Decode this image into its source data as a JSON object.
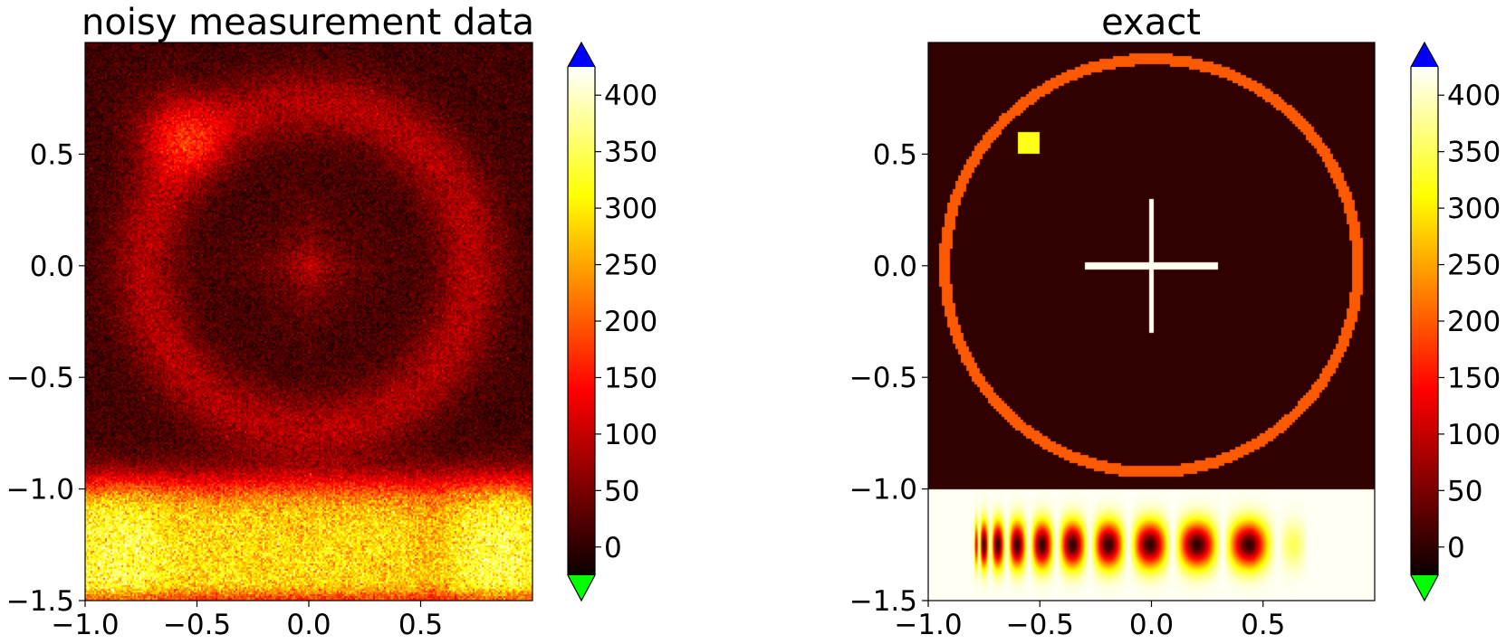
{
  "chart_data": [
    {
      "type": "heatmap",
      "title": "noisy measurement data",
      "xlabel": "",
      "ylabel": "",
      "xlim": [
        -1.0,
        1.0
      ],
      "ylim": [
        -1.5,
        1.0
      ],
      "xticks": [
        -1.0,
        -0.5,
        0.0,
        0.5
      ],
      "xtick_labels": [
        "−1.0",
        "−0.5",
        "0.0",
        "0.5"
      ],
      "yticks": [
        -1.5,
        -1.0,
        -0.5,
        0.0,
        0.5
      ],
      "ytick_labels": [
        "−1.5",
        "−1.0",
        "−0.5",
        "0.0",
        "0.5"
      ],
      "colormap": "hot",
      "noise": "random per-pixel noise",
      "features": {
        "ring": {
          "center": [
            0.0,
            0.0
          ],
          "radius": 0.73,
          "width": 0.25,
          "value": 70
        },
        "center_blob": {
          "center": [
            0.0,
            0.0
          ],
          "radius": 0.28,
          "value": 90
        },
        "square_blob": {
          "center": [
            -0.58,
            0.6
          ],
          "radius": 0.18,
          "value": 110
        },
        "bottom_band": {
          "y_range": [
            -1.5,
            -1.0
          ],
          "value": 330
        },
        "background": 10
      },
      "colorbar": {
        "range": [
          -25,
          425
        ],
        "ticks": [
          0,
          50,
          100,
          150,
          200,
          250,
          300,
          350,
          400
        ],
        "tick_labels": [
          "0",
          "50",
          "100",
          "150",
          "200",
          "250",
          "300",
          "350",
          "400"
        ],
        "extend": "both",
        "over_color": "#0000ff",
        "under_color": "#00ff00"
      }
    },
    {
      "type": "heatmap",
      "title": "exact",
      "xlabel": "",
      "ylabel": "",
      "xlim": [
        -1.0,
        1.0
      ],
      "ylim": [
        -1.5,
        1.0
      ],
      "xticks": [
        -1.0,
        -0.5,
        0.0,
        0.5
      ],
      "xtick_labels": [
        "−1.0",
        "−0.5",
        "0.0",
        "0.5"
      ],
      "yticks": [
        -1.5,
        -1.0,
        -0.5,
        0.0,
        0.5
      ],
      "ytick_labels": [
        "−1.5",
        "−1.0",
        "−0.5",
        "0.0",
        "0.5"
      ],
      "colormap": "hot",
      "features": {
        "background": 0,
        "ring": {
          "center": [
            0.0,
            0.0
          ],
          "radius_inner": 0.9,
          "radius_outer": 0.95,
          "value": 200
        },
        "cross": {
          "center": [
            0.0,
            0.0
          ],
          "half_length_x": 0.3,
          "half_length_y": 0.3,
          "thickness": 0.015,
          "value": 420
        },
        "square": {
          "x_range": [
            -0.6,
            -0.5
          ],
          "y_range": [
            0.5,
            0.6
          ],
          "value": 320
        },
        "bottom_band": {
          "y_range": [
            -1.5,
            -1.0
          ],
          "background_value": 420,
          "x_range": [
            -0.8,
            0.7
          ],
          "oscillation": "chirped cosine stripes, frequency decreasing left to right"
        }
      },
      "colorbar": {
        "range": [
          -25,
          425
        ],
        "ticks": [
          0,
          50,
          100,
          150,
          200,
          250,
          300,
          350,
          400
        ],
        "tick_labels": [
          "0",
          "50",
          "100",
          "150",
          "200",
          "250",
          "300",
          "350",
          "400"
        ],
        "extend": "both",
        "over_color": "#0000ff",
        "under_color": "#00ff00"
      }
    }
  ]
}
